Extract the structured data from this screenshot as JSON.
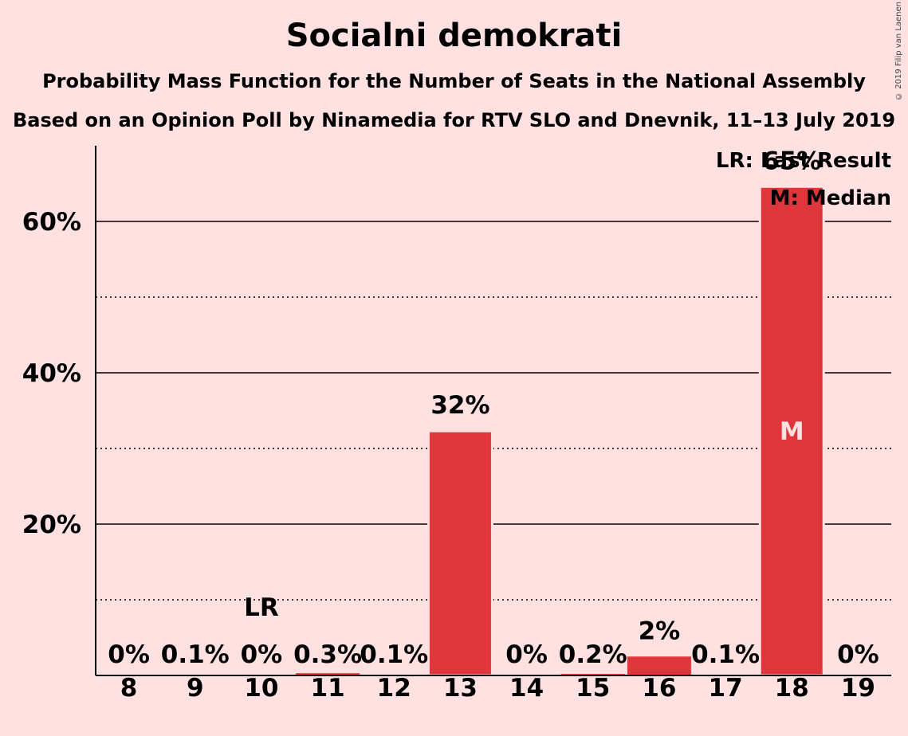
{
  "title": "Socialni demokrati",
  "subtitle1": "Probability Mass Function for the Number of Seats in the National Assembly",
  "subtitle2": "Based on an Opinion Poll by Ninamedia for RTV SLO and Dnevnik, 11–13 July 2019",
  "copyright": "© 2019 Filip van Laenen",
  "colors": {
    "background": "#ffe1e1",
    "bar": "#e0353a",
    "median_text": "#ffe1e1"
  },
  "chart_data": {
    "type": "bar",
    "categories": [
      "8",
      "9",
      "10",
      "11",
      "12",
      "13",
      "14",
      "15",
      "16",
      "17",
      "18",
      "19"
    ],
    "values": [
      0,
      0.1,
      0,
      0.3,
      0.1,
      32.3,
      0,
      0.2,
      2.5,
      0.1,
      64.6,
      0
    ],
    "value_labels": [
      "0%",
      "0.1%",
      "0%",
      "0.3%",
      "0.1%",
      "32%",
      "0%",
      "0.2%",
      "2%",
      "0.1%",
      "65%",
      "0%"
    ],
    "y_ticks": [
      20,
      40,
      60
    ],
    "y_tick_labels": [
      "20%",
      "40%",
      "60%"
    ],
    "y_minor_gridlines": [
      10,
      30,
      50
    ],
    "ylim": [
      0,
      70
    ],
    "last_result": {
      "category": "10",
      "label": "LR"
    },
    "median": {
      "category": "18",
      "label": "M"
    },
    "legend": {
      "placement": "top-right",
      "items": [
        "LR: Last Result",
        "M: Median"
      ]
    }
  }
}
